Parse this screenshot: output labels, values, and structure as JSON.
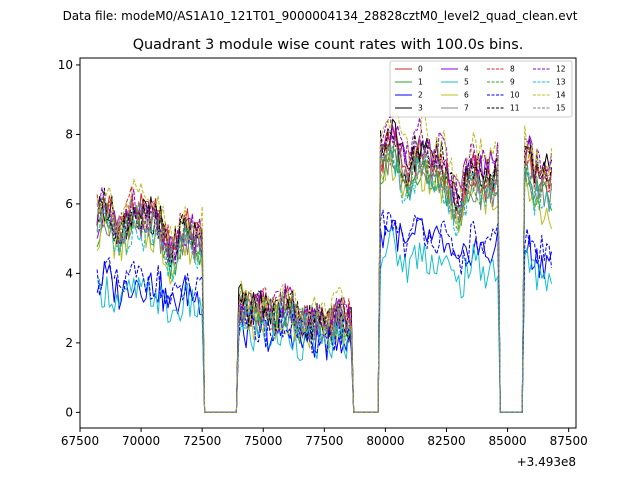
{
  "figure": {
    "suptitle": "Data file: modeM0/AS1A10_121T01_9000004134_28828cztM0_level2_quad_clean.evt"
  },
  "chart_data": {
    "type": "line",
    "title": "Quadrant 3 module wise count rates with 100.0s bins.",
    "xlabel": "",
    "ylabel": "",
    "x_offset_label": "+3.493e8",
    "xlim": [
      67500,
      87800
    ],
    "ylim": [
      -0.45,
      10.2
    ],
    "x_ticks": [
      67500,
      70000,
      72500,
      75000,
      77500,
      80000,
      82500,
      85000,
      87500
    ],
    "x_tick_labels": [
      "67500",
      "70000",
      "72500",
      "75000",
      "77500",
      "80000",
      "82500",
      "85000",
      "87500"
    ],
    "y_ticks": [
      0,
      2,
      4,
      6,
      8,
      10
    ],
    "y_tick_labels": [
      "0",
      "2",
      "4",
      "6",
      "8",
      "10"
    ],
    "bin_size_s": 100,
    "x_start": 68200,
    "x_end": 86800,
    "gaps": [
      [
        72500,
        74000
      ],
      [
        78600,
        79800
      ],
      [
        84600,
        85700
      ]
    ],
    "legend_position": "top-right",
    "series": [
      {
        "name": "0",
        "color": "#d62728",
        "dash": "solid",
        "base": 6.0,
        "seg_levels": [
          5.4,
          2.8,
          6.9,
          6.4,
          6.7
        ]
      },
      {
        "name": "1",
        "color": "#2ca02c",
        "dash": "solid",
        "base": 5.3,
        "seg_levels": [
          5.0,
          2.6,
          6.6,
          5.9,
          6.2
        ]
      },
      {
        "name": "2",
        "color": "#0000ff",
        "dash": "solid",
        "base": 3.6,
        "seg_levels": [
          3.5,
          2.2,
          4.8,
          4.2,
          4.5
        ]
      },
      {
        "name": "3",
        "color": "#000000",
        "dash": "solid",
        "base": 5.8,
        "seg_levels": [
          5.4,
          2.9,
          7.1,
          6.6,
          6.8
        ]
      },
      {
        "name": "4",
        "color": "#9400d3",
        "dash": "solid",
        "base": 5.6,
        "seg_levels": [
          5.2,
          2.8,
          7.3,
          6.8,
          6.5
        ]
      },
      {
        "name": "5",
        "color": "#17becf",
        "dash": "solid",
        "base": 3.3,
        "seg_levels": [
          3.2,
          2.1,
          4.3,
          3.8,
          4.0
        ]
      },
      {
        "name": "6",
        "color": "#bcbd22",
        "dash": "solid",
        "base": 5.2,
        "seg_levels": [
          4.8,
          2.5,
          6.4,
          5.5,
          5.8
        ]
      },
      {
        "name": "7",
        "color": "#7f7f7f",
        "dash": "solid",
        "base": 5.4,
        "seg_levels": [
          5.1,
          2.7,
          6.6,
          6.0,
          6.3
        ]
      },
      {
        "name": "8",
        "color": "#d62728",
        "dash": "dashed",
        "base": 5.9,
        "seg_levels": [
          5.5,
          2.9,
          7.0,
          6.5,
          6.9
        ]
      },
      {
        "name": "9",
        "color": "#2ca02c",
        "dash": "dashed",
        "base": 5.5,
        "seg_levels": [
          5.1,
          2.7,
          6.7,
          6.1,
          6.3
        ]
      },
      {
        "name": "10",
        "color": "#0000ff",
        "dash": "dashed",
        "base": 3.8,
        "seg_levels": [
          3.6,
          2.3,
          5.0,
          4.4,
          4.6
        ]
      },
      {
        "name": "11",
        "color": "#000000",
        "dash": "dashed",
        "base": 5.7,
        "seg_levels": [
          5.3,
          2.8,
          7.2,
          6.7,
          6.9
        ]
      },
      {
        "name": "12",
        "color": "#9400d3",
        "dash": "dashed",
        "base": 5.8,
        "seg_levels": [
          5.4,
          2.9,
          7.4,
          6.8,
          6.6
        ]
      },
      {
        "name": "13",
        "color": "#17becf",
        "dash": "dashed",
        "base": 5.2,
        "seg_levels": [
          4.9,
          2.6,
          6.5,
          5.8,
          6.0
        ]
      },
      {
        "name": "14",
        "color": "#bcbd22",
        "dash": "dashed",
        "base": 6.3,
        "seg_levels": [
          5.7,
          3.0,
          7.6,
          6.8,
          6.9
        ]
      },
      {
        "name": "15",
        "color": "#7f7f7f",
        "dash": "dashed",
        "base": 5.6,
        "seg_levels": [
          5.2,
          2.8,
          6.8,
          6.2,
          6.4
        ]
      }
    ]
  }
}
